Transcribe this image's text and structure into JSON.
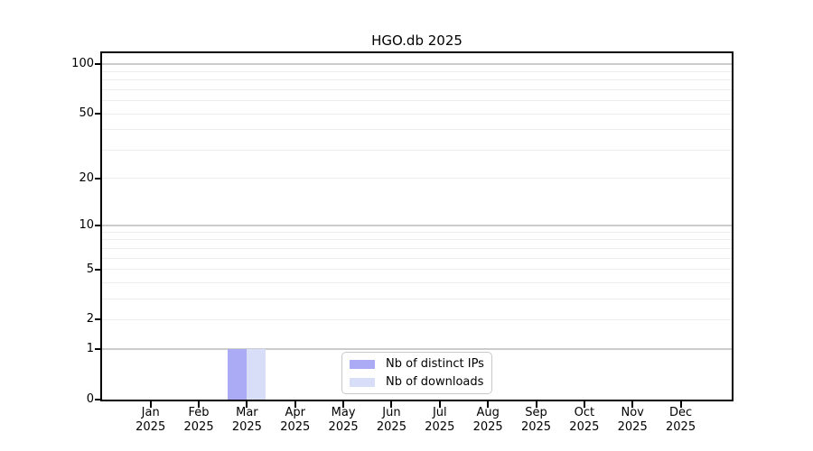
{
  "chart_data": {
    "type": "bar",
    "title": "HGO.db 2025",
    "categories": [
      "Jan",
      "Feb",
      "Mar",
      "Apr",
      "May",
      "Jun",
      "Jul",
      "Aug",
      "Sep",
      "Oct",
      "Nov",
      "Dec"
    ],
    "year_label": "2025",
    "series": [
      {
        "name": "Nb of distinct IPs",
        "color": "#aaaaf5",
        "values": [
          0,
          0,
          1,
          0,
          0,
          0,
          0,
          0,
          0,
          0,
          0,
          0
        ]
      },
      {
        "name": "Nb of downloads",
        "color": "#d9def8",
        "values": [
          0,
          0,
          1,
          0,
          0,
          0,
          0,
          0,
          0,
          0,
          0,
          0
        ]
      }
    ],
    "y_scale": "log1p",
    "yticks": [
      0,
      1,
      2,
      5,
      10,
      20,
      50,
      100
    ],
    "major_gridlines": [
      1,
      10,
      100
    ],
    "minor_gridlines": [
      2,
      3,
      4,
      5,
      6,
      7,
      8,
      9,
      20,
      30,
      40,
      50,
      60,
      70,
      80,
      90
    ],
    "ylim": [
      0,
      116
    ],
    "grid_on": true,
    "legend_position": "bottom-center",
    "colors": {
      "grid_major": "#cccccc",
      "grid_minor": "#ededed",
      "axis": "#000000",
      "text": "#000000",
      "background": "#ffffff"
    }
  }
}
